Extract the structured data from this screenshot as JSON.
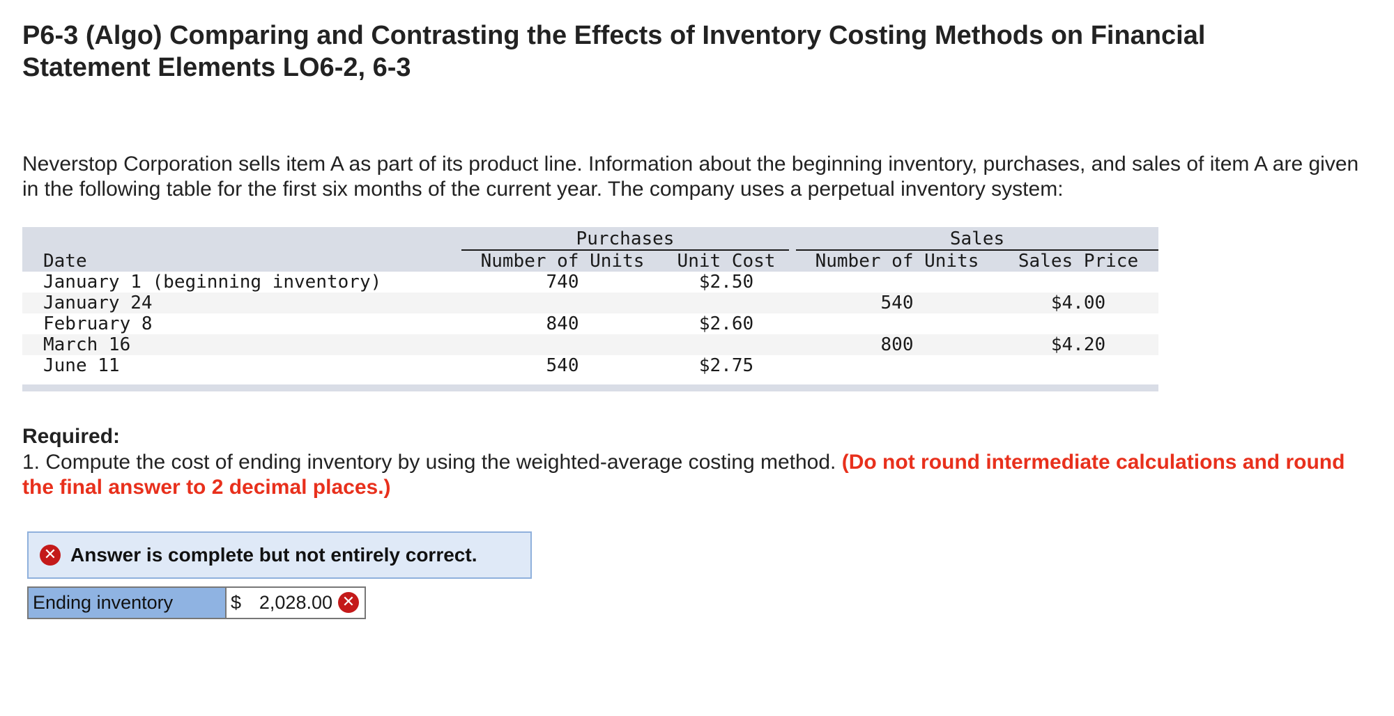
{
  "title": "P6-3 (Algo) Comparing and Contrasting the Effects of Inventory Costing Methods on Financial Statement Elements LO6-2, 6-3",
  "intro": "Neverstop Corporation sells item A as part of its product line. Information about the beginning inventory, purchases, and sales of item A are given in the following table for the first six months of the current year. The company uses a perpetual inventory system:",
  "table": {
    "group_headers": {
      "purchases": "Purchases",
      "sales": "Sales"
    },
    "columns": {
      "date": "Date",
      "purchase_units": "Number of Units",
      "unit_cost": "Unit Cost",
      "sales_units": "Number of Units",
      "sales_price": "Sales Price"
    },
    "rows": [
      {
        "date": "January 1 (beginning inventory)",
        "purchase_units": "740",
        "unit_cost": "$2.50",
        "sales_units": "",
        "sales_price": ""
      },
      {
        "date": "January 24",
        "purchase_units": "",
        "unit_cost": "",
        "sales_units": "540",
        "sales_price": "$4.00"
      },
      {
        "date": "February 8",
        "purchase_units": "840",
        "unit_cost": "$2.60",
        "sales_units": "",
        "sales_price": ""
      },
      {
        "date": "March 16",
        "purchase_units": "",
        "unit_cost": "",
        "sales_units": "800",
        "sales_price": "$4.20"
      },
      {
        "date": "June 11",
        "purchase_units": "540",
        "unit_cost": "$2.75",
        "sales_units": "",
        "sales_price": ""
      }
    ]
  },
  "required": {
    "heading": "Required:",
    "question": "1. Compute the cost of ending inventory by using the weighted-average costing method.",
    "note": "(Do not round intermediate calculations and round the final answer to 2 decimal places.)"
  },
  "status": {
    "message": "Answer is complete but not entirely correct.",
    "icon": "x-circle-icon",
    "icon_color": "#c41a1a"
  },
  "answer": {
    "label": "Ending inventory",
    "currency": "$",
    "value": "2,028.00",
    "result_icon": "x-circle-icon"
  }
}
